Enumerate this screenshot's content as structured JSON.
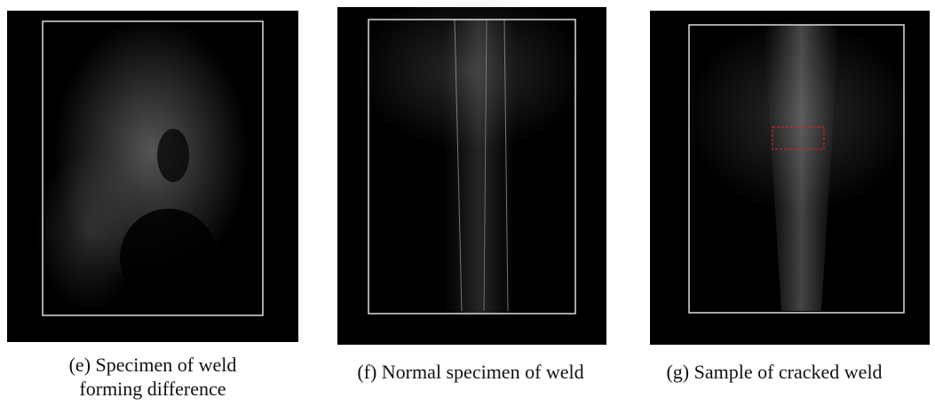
{
  "figure": {
    "panels": [
      {
        "caption_lines": [
          "(e) Specimen of weld",
          "forming difference"
        ]
      },
      {
        "caption_lines": [
          "(f) Normal specimen of weld"
        ]
      },
      {
        "caption_lines": [
          "(g) Sample of cracked weld"
        ]
      }
    ]
  }
}
